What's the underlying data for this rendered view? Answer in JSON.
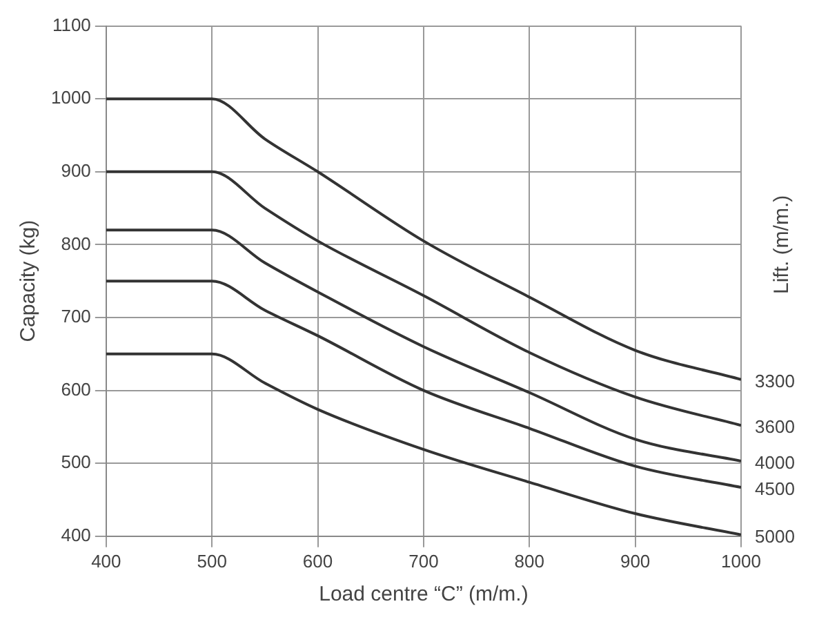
{
  "chart_data": {
    "type": "line",
    "xlabel": "Load centre “C” (m/m.)",
    "ylabel": "Capacity (kg)",
    "y2label": "Lift. (m/m.)",
    "x": [
      400,
      500,
      550,
      600,
      700,
      800,
      900,
      1000
    ],
    "series": [
      {
        "name": "3300",
        "color": "#333333",
        "values": [
          1000,
          1000,
          945,
          900,
          805,
          728,
          655,
          615
        ]
      },
      {
        "name": "3600",
        "color": "#333333",
        "values": [
          900,
          900,
          850,
          805,
          730,
          652,
          591,
          552
        ]
      },
      {
        "name": "4000",
        "color": "#333333",
        "values": [
          820,
          820,
          775,
          735,
          660,
          597,
          533,
          503
        ]
      },
      {
        "name": "4500",
        "color": "#333333",
        "values": [
          750,
          750,
          710,
          675,
          600,
          548,
          496,
          467
        ]
      },
      {
        "name": "5000",
        "color": "#333333",
        "values": [
          650,
          650,
          610,
          574,
          519,
          474,
          431,
          402
        ]
      }
    ],
    "xlim": [
      400,
      1000
    ],
    "xticks": [
      400,
      500,
      600,
      700,
      800,
      900,
      1000
    ],
    "ylim": [
      400,
      1100
    ],
    "yticks": [
      400,
      500,
      600,
      700,
      800,
      900,
      1000,
      1100
    ],
    "grid": true,
    "legend": false,
    "marker": "none",
    "line_style": "solid"
  }
}
